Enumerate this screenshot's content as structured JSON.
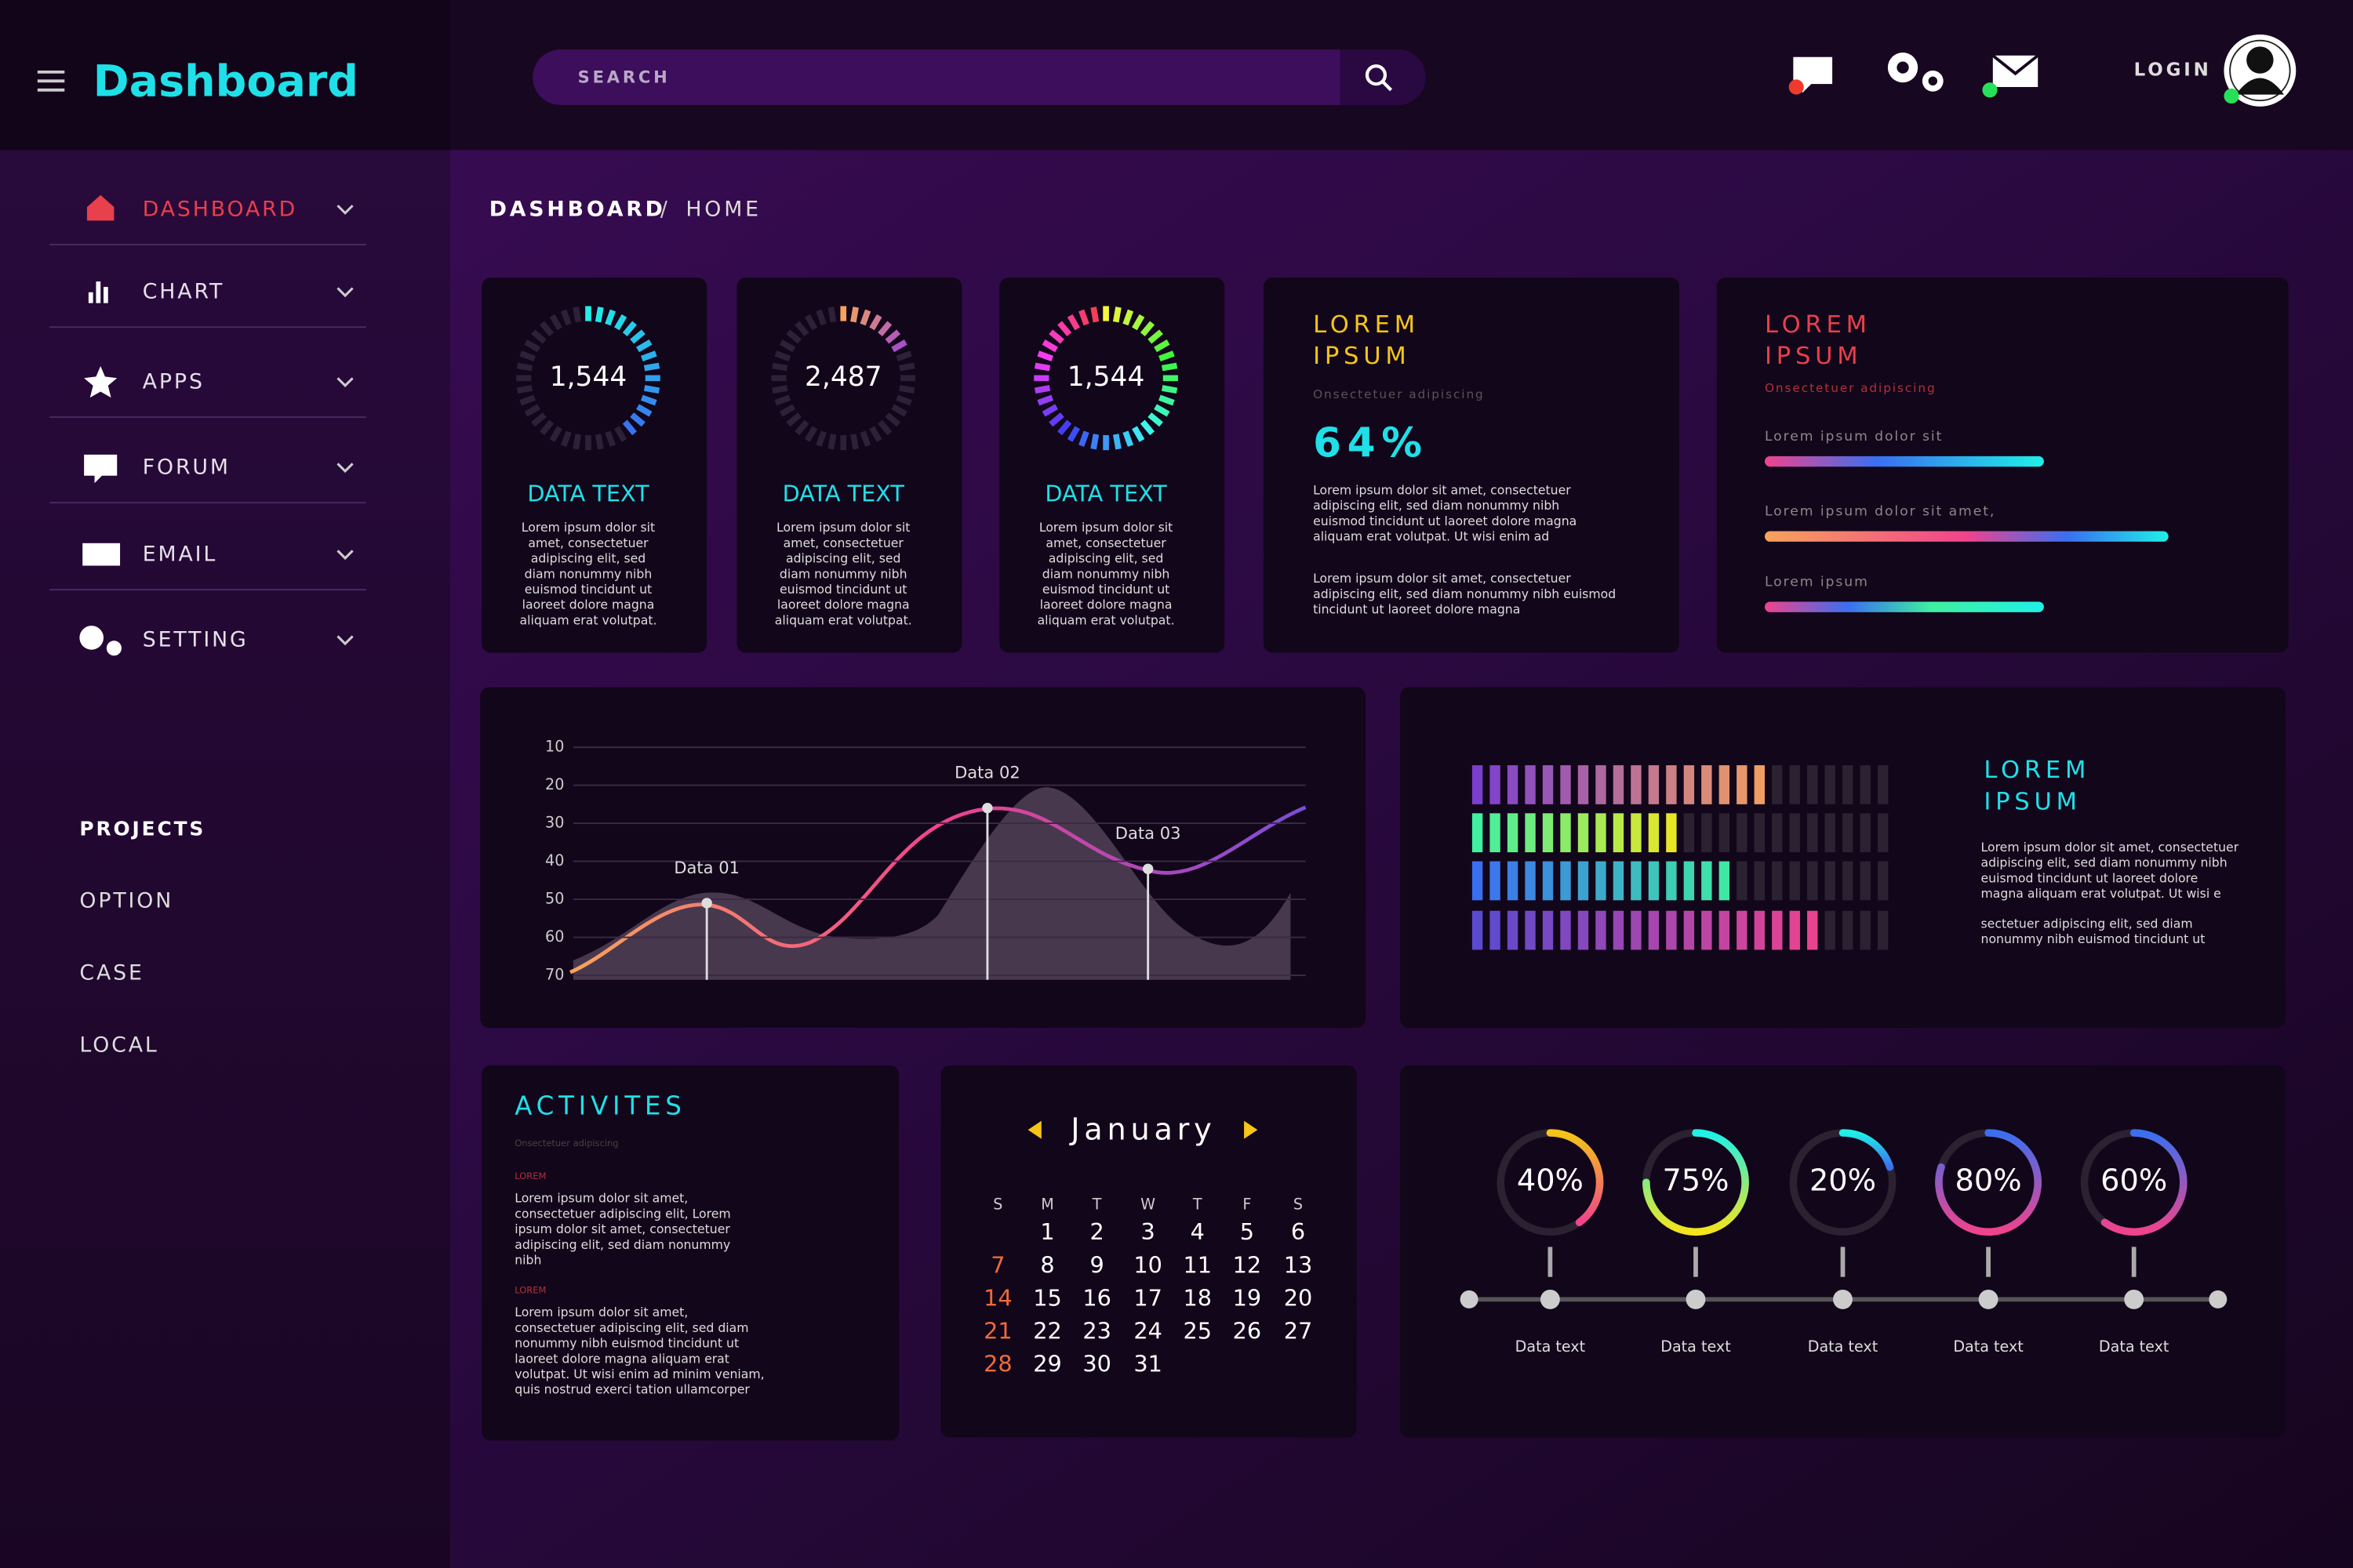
{
  "header": {
    "title": "Dashboard",
    "search": "SEARCH",
    "login": "LOGIN"
  },
  "sidebar": {
    "menu": [
      "DASHBOARD",
      "CHART",
      "APPS",
      "FORUM",
      "EMAIL",
      "SETTING"
    ],
    "projects_title": "PROJECTS",
    "projects": [
      "OPTION",
      "CASE",
      "LOCAL"
    ]
  },
  "breadcrumb": {
    "current": "DASHBOARD",
    "separator": "/",
    "page": "HOME"
  },
  "stat_cards": [
    {
      "value": "1,544",
      "title": "DATA TEXT",
      "text": [
        "Lorem ipsum dolor sit",
        "amet, consectetuer",
        "adipiscing elit, sed",
        "diam nonummy nibh",
        "euismod tincidunt ut",
        "laoreet dolore magna",
        "aliquam erat volutpat."
      ]
    },
    {
      "value": "2,487",
      "title": "DATA TEXT",
      "text": [
        "Lorem ipsum dolor sit",
        "amet, consectetuer",
        "adipiscing elit, sed",
        "diam nonummy nibh",
        "euismod tincidunt ut",
        "laoreet dolore magna",
        "aliquam erat volutpat."
      ]
    },
    {
      "value": "1,544",
      "title": "DATA TEXT",
      "text": [
        "Lorem ipsum dolor sit",
        "amet, consectetuer",
        "adipiscing elit, sed",
        "diam nonummy nibh",
        "euismod tincidunt ut",
        "laoreet dolore magna",
        "aliquam erat volutpat."
      ]
    }
  ],
  "percent_card": {
    "title": [
      "LOREM",
      "IPSUM"
    ],
    "subtitle": "Onsectetuer adipiscing",
    "value": "64%",
    "text1": [
      "Lorem ipsum dolor sit amet, consectetuer",
      "adipiscing elit, sed diam nonummy nibh",
      "euismod tincidunt ut laoreet dolore magna",
      "aliquam erat volutpat. Ut wisi enim ad"
    ],
    "text2": [
      "Lorem ipsum dolor sit amet, consectetuer",
      "adipiscing elit, sed diam nonummy nibh euismod",
      "tincidunt ut laoreet dolore magna"
    ]
  },
  "progress_card": {
    "title": [
      "LOREM",
      "IPSUM"
    ],
    "subtitle": "Onsectetuer adipiscing",
    "bars": [
      "Lorem ipsum dolor sit",
      "Lorem ipsum dolor sit amet,",
      "Lorem ipsum"
    ]
  },
  "line_chart": {
    "ylim": [
      10,
      70
    ],
    "yticks": [
      10,
      20,
      30,
      40,
      50,
      60,
      70
    ],
    "points": [
      {
        "label": "Data 01",
        "value": 51
      },
      {
        "label": "Data 02",
        "value": 26
      },
      {
        "label": "Data 03",
        "value": 42
      }
    ]
  },
  "equalizer_card": {
    "title": [
      "LOREM",
      "IPSUM"
    ],
    "text1": [
      "Lorem ipsum dolor sit amet, consectetuer",
      "adipiscing elit, sed diam nonummy nibh",
      "euismod tincidunt ut laoreet dolore",
      "magna aliquam erat volutpat. Ut wisi e"
    ],
    "text2": [
      "sectetuer adipiscing elit, sed diam",
      "nonummy nibh euismod tincidunt ut"
    ]
  },
  "activities": {
    "title": "ACTIVITES",
    "subtitle": "Onsectetuer adipiscing",
    "items": [
      {
        "label": "LOREM",
        "text": [
          "Lorem ipsum dolor sit amet,",
          "consectetuer adipiscing elit, Lorem",
          "ipsum dolor sit amet, consectetuer",
          "adipiscing elit, sed diam nonummy",
          "nibh"
        ]
      },
      {
        "label": "LOREM",
        "text": [
          "Lorem ipsum dolor sit amet,",
          "consectetuer adipiscing elit, sed diam",
          "nonummy nibh euismod tincidunt ut",
          "laoreet dolore magna aliquam erat",
          "volutpat. Ut wisi enim ad minim veniam,",
          "quis nostrud exerci tation ullamcorper"
        ]
      }
    ]
  },
  "calendar": {
    "month": "January",
    "weekdays": [
      "S",
      "M",
      "T",
      "W",
      "T",
      "F",
      "S"
    ],
    "days": [
      1,
      2,
      3,
      4,
      5,
      6,
      7,
      8,
      9,
      10,
      11,
      12,
      13,
      14,
      15,
      16,
      17,
      18,
      19,
      20,
      21,
      22,
      23,
      24,
      25,
      26,
      27,
      28,
      29,
      30,
      31
    ]
  },
  "gauges": [
    {
      "value": 40,
      "label": "40%",
      "caption": "Data text"
    },
    {
      "value": 75,
      "label": "75%",
      "caption": "Data text"
    },
    {
      "value": 20,
      "label": "20%",
      "caption": "Data text"
    },
    {
      "value": 80,
      "label": "80%",
      "caption": "Data text"
    },
    {
      "value": 60,
      "label": "60%",
      "caption": "Data text"
    }
  ]
}
